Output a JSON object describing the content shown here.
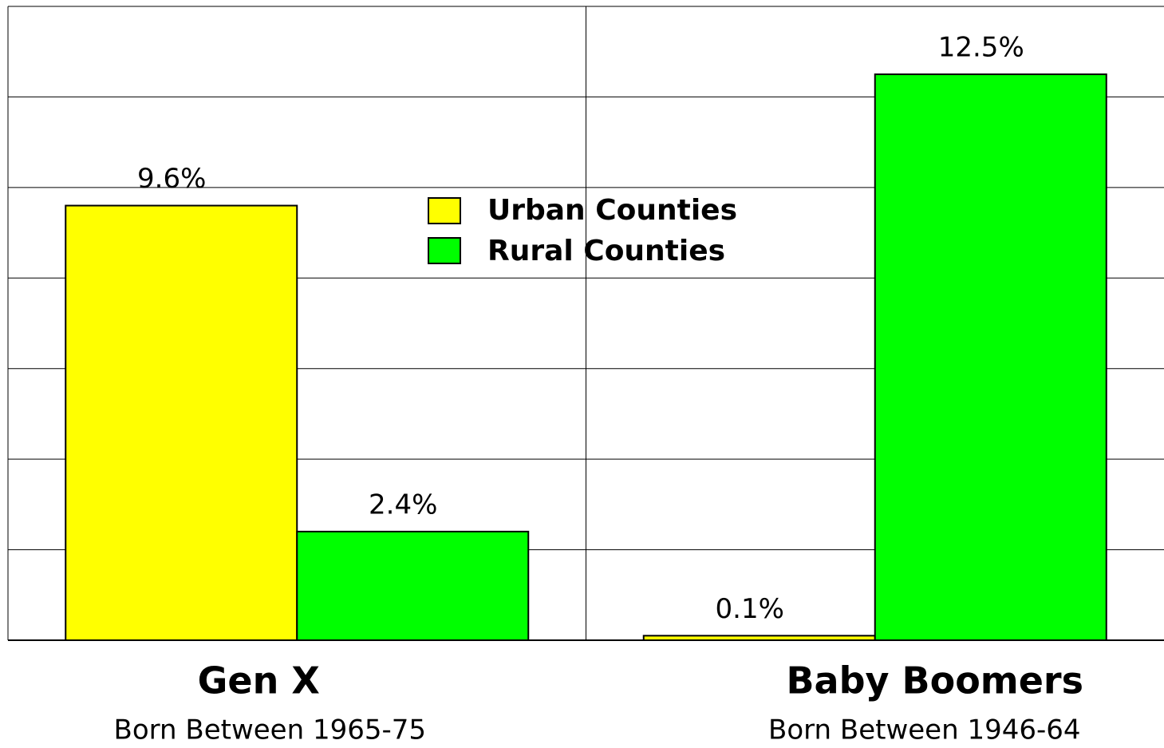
{
  "chart_data": {
    "type": "bar",
    "categories": [
      "Gen X",
      "Baby Boomers"
    ],
    "category_subtitles": [
      "Born Between 1965-75",
      "Born Between 1946-64"
    ],
    "series": [
      {
        "name": "Urban Counties",
        "color": "#ffff00",
        "values": [
          9.6,
          0.1
        ],
        "value_labels": [
          "9.6%",
          "0.1%"
        ]
      },
      {
        "name": "Rural Counties",
        "color": "#00ff00",
        "values": [
          2.4,
          12.5
        ],
        "value_labels": [
          "2.4%",
          "12.5%"
        ]
      }
    ],
    "ylim": [
      0,
      14
    ],
    "yticks": [
      0,
      2,
      4,
      6,
      8,
      10,
      12,
      14
    ],
    "grid": true,
    "legend": "center"
  }
}
